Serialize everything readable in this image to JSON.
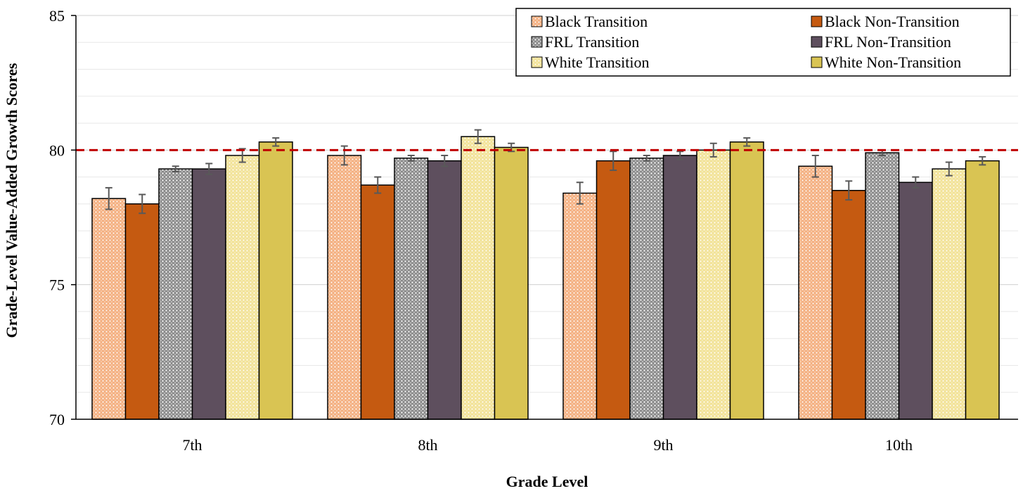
{
  "chart_data": {
    "type": "bar",
    "title": "",
    "xlabel": "Grade Level",
    "ylabel": "Grade-Level Value-Added Growth Scores",
    "ylim": [
      70,
      85
    ],
    "yticks": [
      70,
      75,
      80,
      85
    ],
    "grid": true,
    "legend_position": "top-right",
    "reference_line": {
      "value": 80,
      "color": "#c00000",
      "style": "dashed"
    },
    "categories": [
      "7th",
      "8th",
      "9th",
      "10th"
    ],
    "series": [
      {
        "name": "Black Transition",
        "color": "#f4b183",
        "pattern": "dots-light",
        "values": [
          78.2,
          79.8,
          78.4,
          79.4
        ],
        "errors": [
          0.4,
          0.35,
          0.4,
          0.4
        ]
      },
      {
        "name": "Black Non-Transition",
        "color": "#c55a11",
        "pattern": "solid",
        "values": [
          78.0,
          78.7,
          79.6,
          78.5
        ],
        "errors": [
          0.35,
          0.3,
          0.35,
          0.35
        ]
      },
      {
        "name": "FRL Transition",
        "color": "#a6a6a6",
        "pattern": "dots-dark",
        "values": [
          79.3,
          79.7,
          79.7,
          79.9
        ],
        "errors": [
          0.1,
          0.1,
          0.1,
          0.1
        ]
      },
      {
        "name": "FRL Non-Transition",
        "color": "#5e4f5e",
        "pattern": "solid",
        "values": [
          79.3,
          79.6,
          79.8,
          78.8
        ],
        "errors": [
          0.2,
          0.2,
          0.15,
          0.2
        ]
      },
      {
        "name": "White Transition",
        "color": "#f6e8a0",
        "pattern": "dots-light",
        "values": [
          79.8,
          80.5,
          80.0,
          79.3
        ],
        "errors": [
          0.25,
          0.25,
          0.25,
          0.25
        ]
      },
      {
        "name": "White Non-Transition",
        "color": "#d9c453",
        "pattern": "solid",
        "values": [
          80.3,
          80.1,
          80.3,
          79.6
        ],
        "errors": [
          0.15,
          0.15,
          0.15,
          0.15
        ]
      }
    ]
  }
}
